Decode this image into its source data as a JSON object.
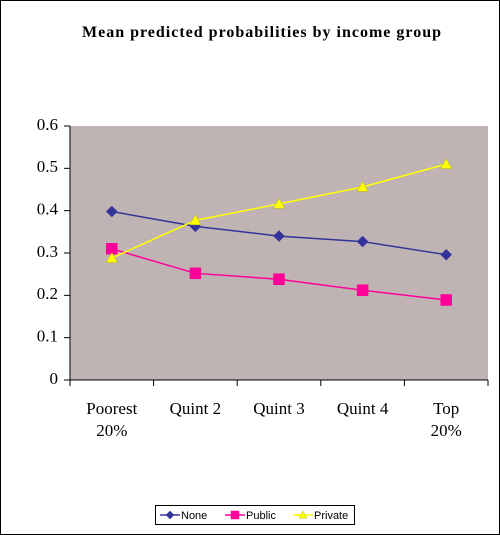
{
  "chart_data": {
    "type": "line",
    "title": "Mean predicted probabilities by income group",
    "categories": [
      "Poorest 20%",
      "Quint 2",
      "Quint 3",
      "Quint 4",
      "Top 20%"
    ],
    "series": [
      {
        "name": "None",
        "color": "#333399",
        "marker": "diamond",
        "values": [
          0.398,
          0.363,
          0.34,
          0.327,
          0.296
        ]
      },
      {
        "name": "Public",
        "color": "#ff0099",
        "marker": "square",
        "values": [
          0.31,
          0.252,
          0.238,
          0.212,
          0.189
        ]
      },
      {
        "name": "Private",
        "color": "#ffff00",
        "marker": "triangle",
        "values": [
          0.288,
          0.377,
          0.416,
          0.456,
          0.51
        ]
      }
    ],
    "ylim": [
      0,
      0.6
    ],
    "yticks": [
      0,
      0.1,
      0.2,
      0.3,
      0.4,
      0.5,
      0.6
    ],
    "grid": false,
    "plot_background": "#c0b3b3",
    "legend": "bottom"
  }
}
